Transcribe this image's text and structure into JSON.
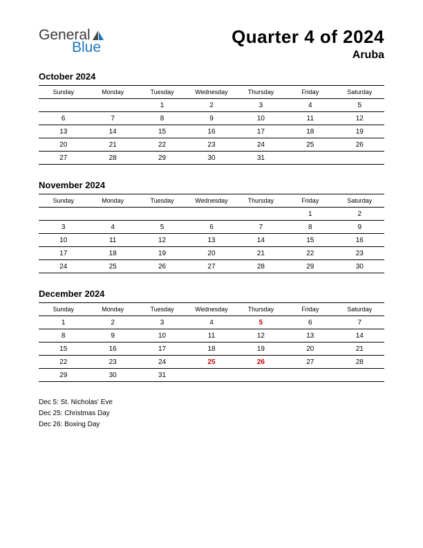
{
  "logo": {
    "part1": "General",
    "part2": "Blue",
    "color_gray": "#3a3a3a",
    "color_blue": "#1b75bb"
  },
  "header": {
    "title": "Quarter 4 of 2024",
    "subtitle": "Aruba"
  },
  "day_headers": [
    "Sunday",
    "Monday",
    "Tuesday",
    "Wednesday",
    "Thursday",
    "Friday",
    "Saturday"
  ],
  "holiday_color": "#c00000",
  "months": [
    {
      "title": "October 2024",
      "weeks": [
        [
          "",
          "",
          "1",
          "2",
          "3",
          "4",
          "5"
        ],
        [
          "6",
          "7",
          "8",
          "9",
          "10",
          "11",
          "12"
        ],
        [
          "13",
          "14",
          "15",
          "16",
          "17",
          "18",
          "19"
        ],
        [
          "20",
          "21",
          "22",
          "23",
          "24",
          "25",
          "26"
        ],
        [
          "27",
          "28",
          "29",
          "30",
          "31",
          "",
          ""
        ]
      ],
      "holidays": []
    },
    {
      "title": "November 2024",
      "weeks": [
        [
          "",
          "",
          "",
          "",
          "",
          "1",
          "2"
        ],
        [
          "3",
          "4",
          "5",
          "6",
          "7",
          "8",
          "9"
        ],
        [
          "10",
          "11",
          "12",
          "13",
          "14",
          "15",
          "16"
        ],
        [
          "17",
          "18",
          "19",
          "20",
          "21",
          "22",
          "23"
        ],
        [
          "24",
          "25",
          "26",
          "27",
          "28",
          "29",
          "30"
        ]
      ],
      "holidays": []
    },
    {
      "title": "December 2024",
      "weeks": [
        [
          "1",
          "2",
          "3",
          "4",
          "5",
          "6",
          "7"
        ],
        [
          "8",
          "9",
          "10",
          "11",
          "12",
          "13",
          "14"
        ],
        [
          "15",
          "16",
          "17",
          "18",
          "19",
          "20",
          "21"
        ],
        [
          "22",
          "23",
          "24",
          "25",
          "26",
          "27",
          "28"
        ],
        [
          "29",
          "30",
          "31",
          "",
          "",
          "",
          ""
        ]
      ],
      "holidays": [
        "5",
        "25",
        "26"
      ]
    }
  ],
  "holiday_list": [
    "Dec 5: St. Nicholas' Eve",
    "Dec 25: Christmas Day",
    "Dec 26: Boxing Day"
  ]
}
